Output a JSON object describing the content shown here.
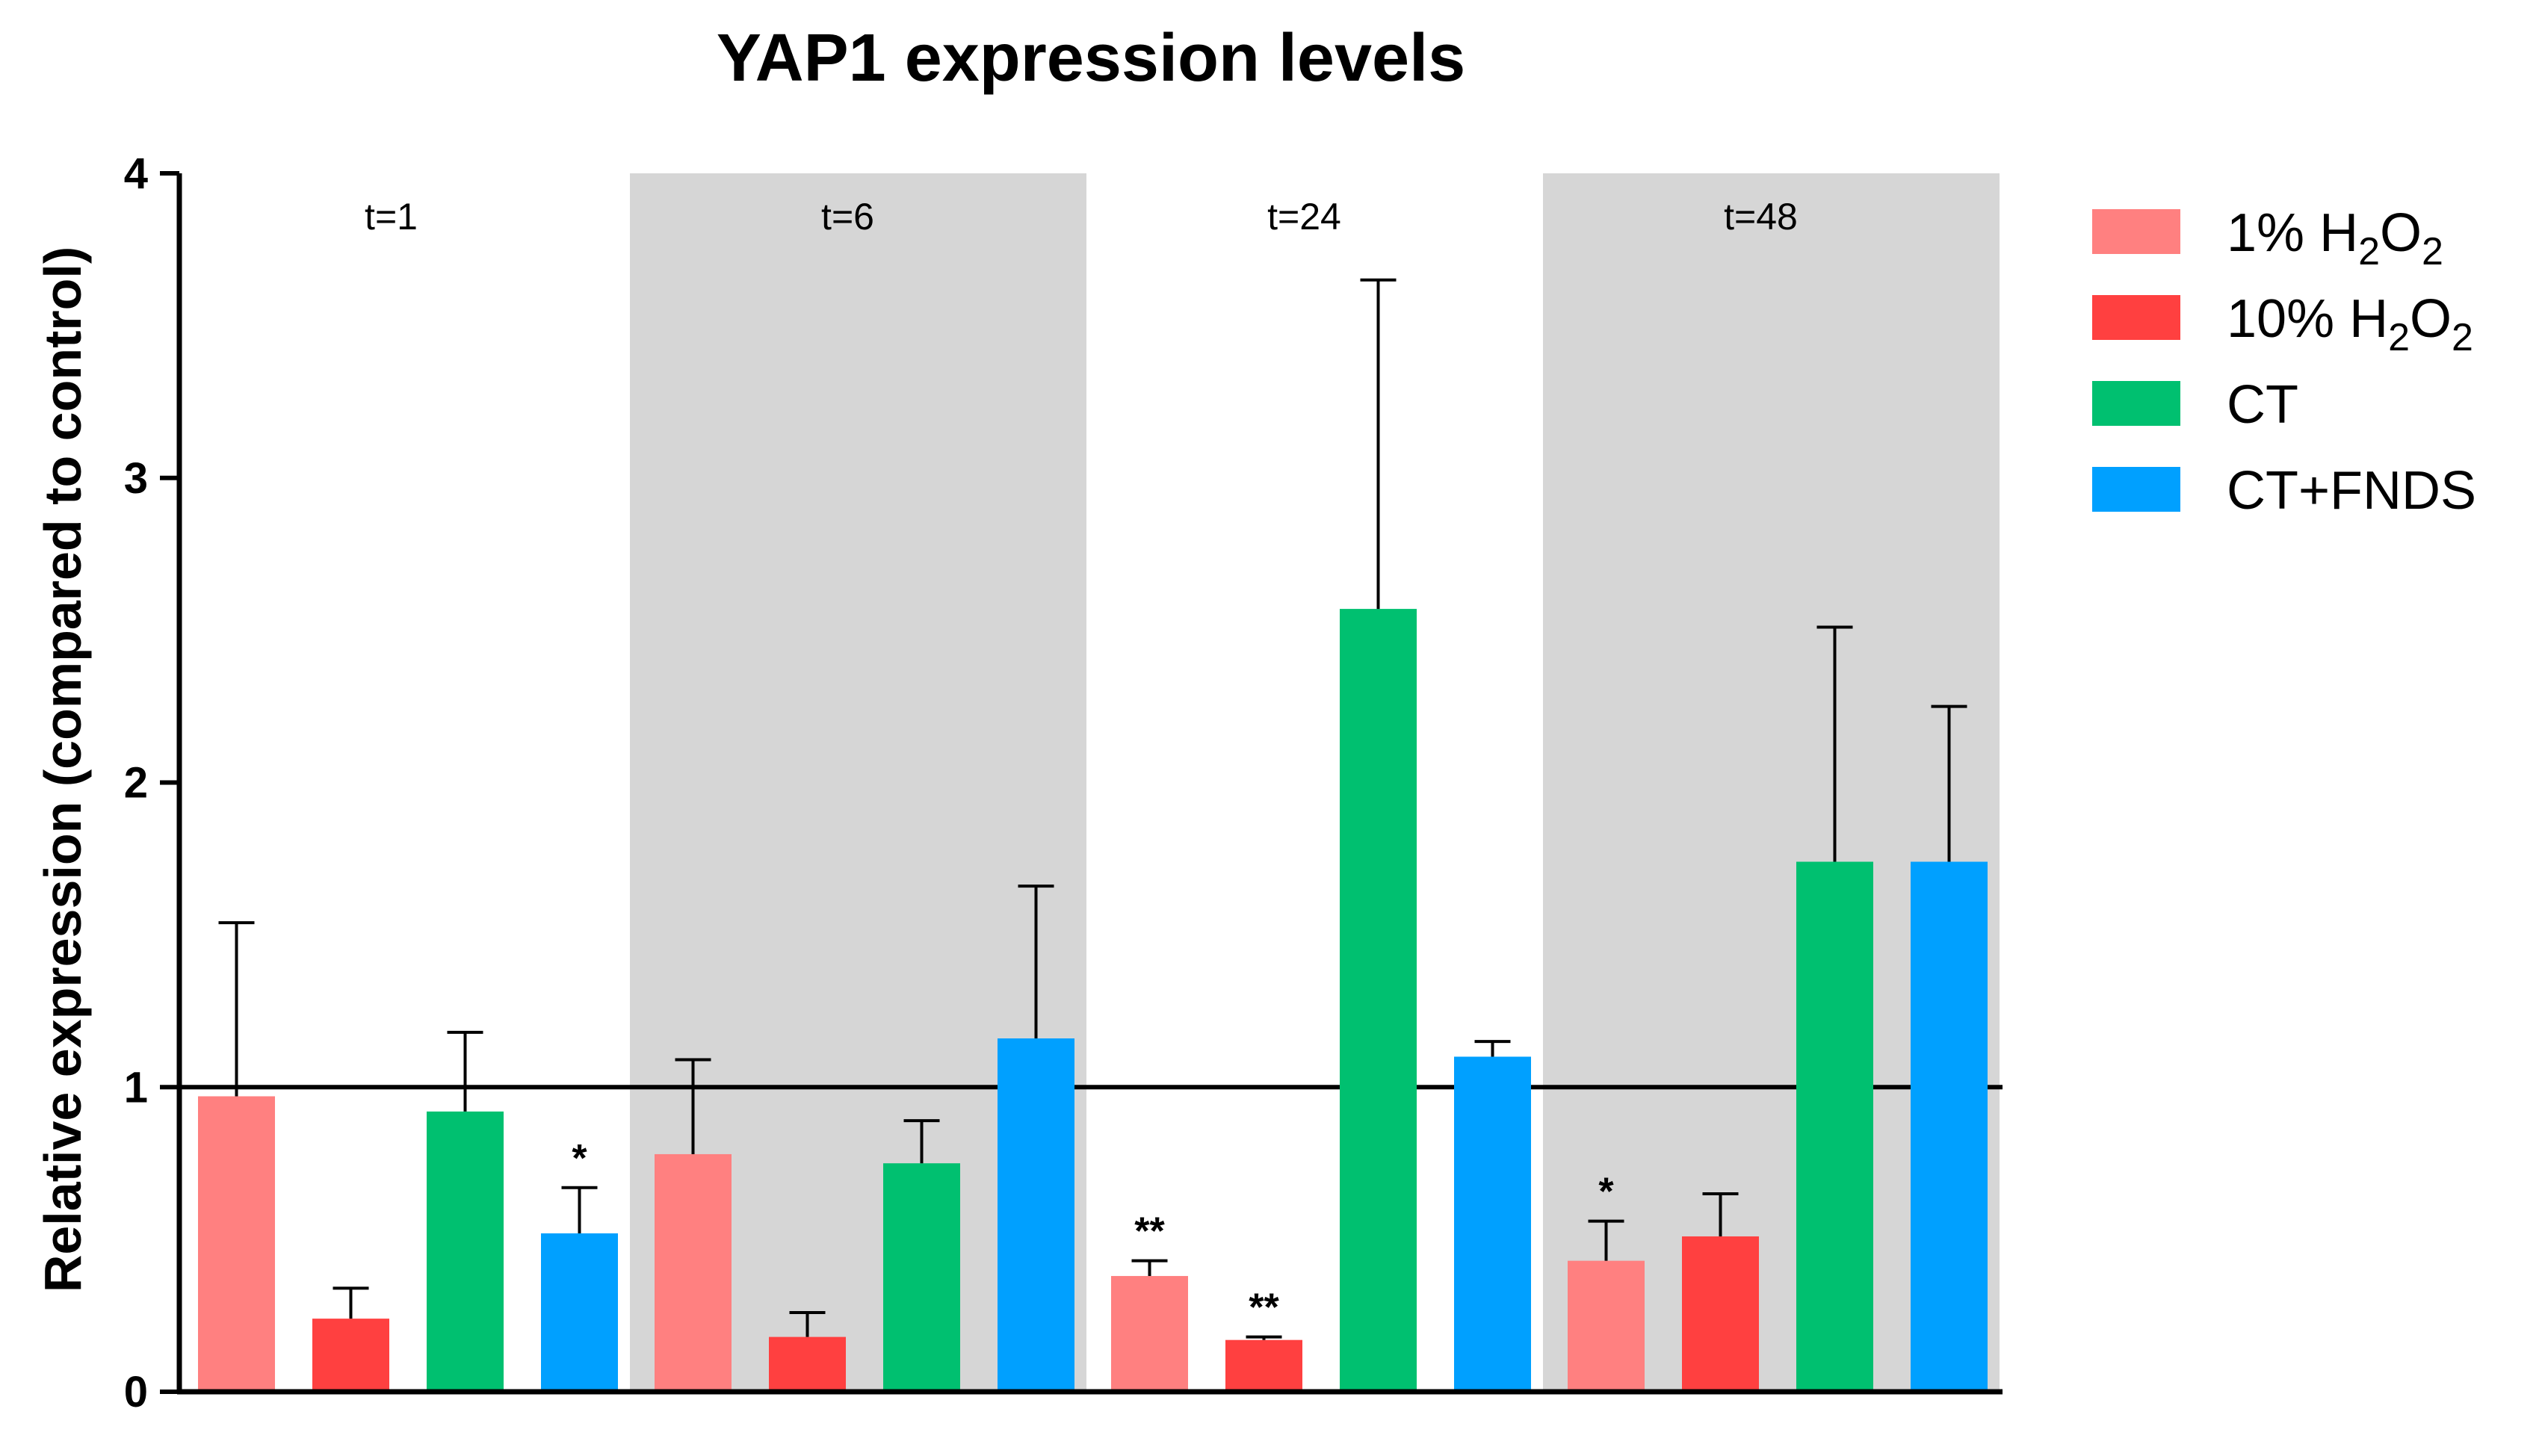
{
  "chart_data": {
    "type": "bar",
    "title": "YAP1 expression levels",
    "xlabel": "",
    "ylabel": "Relative expression (compared to control)",
    "ylim": [
      0,
      4
    ],
    "yticks": [
      0,
      1,
      2,
      3,
      4
    ],
    "reference_line": 1,
    "groups": [
      {
        "label": "t=1",
        "shaded": false
      },
      {
        "label": "t=6",
        "shaded": true
      },
      {
        "label": "t=24",
        "shaded": false
      },
      {
        "label": "t=48",
        "shaded": true
      }
    ],
    "series": [
      {
        "name": "1% H2O2",
        "legend_main": "1% H",
        "legend_sub1": "2",
        "legend_mid": "O",
        "legend_sub2": "2",
        "color": "#FF8080",
        "values": [
          0.97,
          0.78,
          0.38,
          0.43
        ],
        "errors": [
          0.57,
          0.31,
          0.05,
          0.13
        ],
        "sig": [
          "",
          "",
          "**",
          "*"
        ]
      },
      {
        "name": "10% H2O2",
        "legend_main": "10% H",
        "legend_sub1": "2",
        "legend_mid": "O",
        "legend_sub2": "2",
        "color": "#FF4040",
        "values": [
          0.24,
          0.18,
          0.17,
          0.51
        ],
        "errors": [
          0.1,
          0.08,
          0.01,
          0.14
        ],
        "sig": [
          "",
          "",
          "**",
          ""
        ]
      },
      {
        "name": "CT",
        "legend_main": "CT",
        "legend_sub1": "",
        "legend_mid": "",
        "legend_sub2": "",
        "color": "#00C070",
        "values": [
          0.92,
          0.75,
          2.57,
          1.74
        ],
        "errors": [
          0.26,
          0.14,
          1.08,
          0.77
        ],
        "sig": [
          "",
          "",
          "",
          ""
        ]
      },
      {
        "name": "CT+FNDS",
        "legend_main": "CT+FNDS",
        "legend_sub1": "",
        "legend_mid": "",
        "legend_sub2": "",
        "color": "#00A0FF",
        "values": [
          0.52,
          1.16,
          1.1,
          1.74
        ],
        "errors": [
          0.15,
          0.5,
          0.05,
          0.51
        ],
        "sig": [
          "*",
          "",
          "",
          ""
        ]
      }
    ],
    "legend_position": "right"
  }
}
